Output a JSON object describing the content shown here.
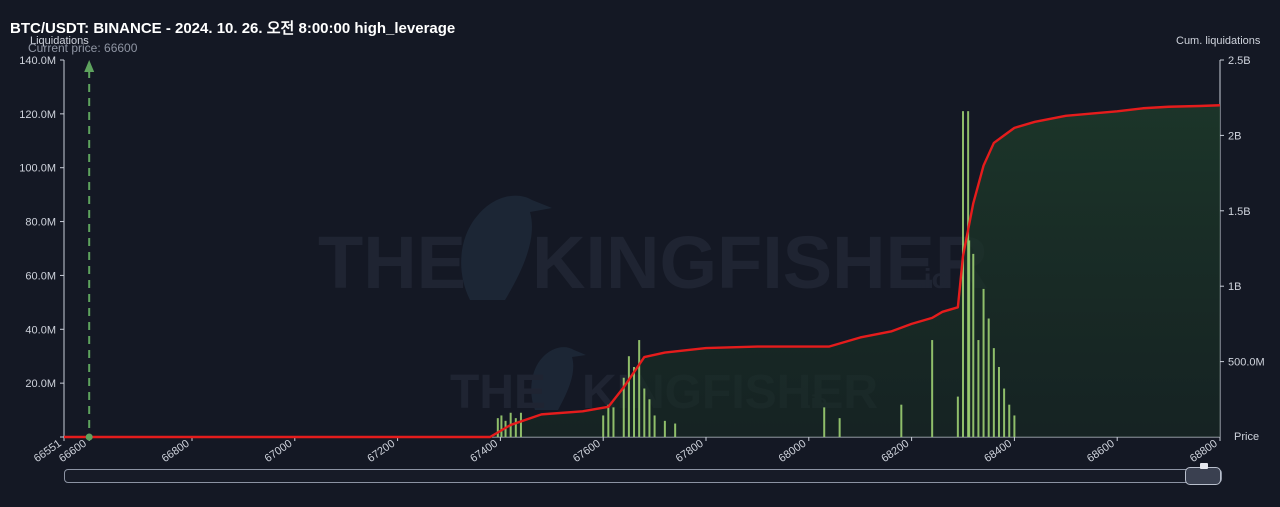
{
  "chart_data": {
    "type": "bar",
    "title": "BTC/USDT: BINANCE - 2024. 10. 26. 오전 8:00:00 high_leverage",
    "ylabel_left": "Liquidations",
    "ylabel_right": "Cum. liquidations",
    "xlabel": "Price",
    "current_price_label": "Current price: 66600",
    "current_price": 66600,
    "xlim": [
      66551,
      68800
    ],
    "ylim_left": [
      0,
      140000000
    ],
    "ylim_right": [
      0,
      2500000000
    ],
    "x_ticks": [
      66551,
      66600,
      66800,
      67000,
      67200,
      67400,
      67600,
      67800,
      68000,
      68200,
      68400,
      68600,
      68800
    ],
    "x_tick_labels": [
      "66551",
      "66600",
      "66800",
      "67000",
      "67200",
      "67400",
      "67600",
      "67800",
      "68000",
      "68200",
      "68400",
      "68600",
      "68800"
    ],
    "y_left_ticks": [
      0,
      20000000,
      40000000,
      60000000,
      80000000,
      100000000,
      120000000,
      140000000
    ],
    "y_left_tick_labels": [
      "",
      "20.0M",
      "40.0M",
      "60.0M",
      "80.0M",
      "100.0M",
      "120.0M",
      "140.0M"
    ],
    "y_right_ticks": [
      500000000,
      1000000000,
      1500000000,
      2000000000,
      2500000000
    ],
    "y_right_tick_labels": [
      "500.0M",
      "1B",
      "1.5B",
      "2B",
      "2.5B"
    ],
    "grid": false,
    "series": [
      {
        "name": "Liquidations",
        "kind": "bar",
        "color": "#9ccf72",
        "x": [
          67395,
          67402,
          67410,
          67420,
          67430,
          67440,
          67600,
          67610,
          67620,
          67640,
          67650,
          67660,
          67670,
          67680,
          67690,
          67700,
          67720,
          67740,
          68030,
          68060,
          68180,
          68240,
          68290,
          68300,
          68310,
          68312,
          68320,
          68330,
          68340,
          68350,
          68360,
          68370,
          68380,
          68390,
          68400
        ],
        "values": [
          7000000,
          8000000,
          6000000,
          9000000,
          7000000,
          9000000,
          8000000,
          12000000,
          11000000,
          22000000,
          30000000,
          26000000,
          36000000,
          18000000,
          14000000,
          8000000,
          6000000,
          5000000,
          11000000,
          7000000,
          12000000,
          36000000,
          15000000,
          121000000,
          121000000,
          73000000,
          68000000,
          36000000,
          55000000,
          44000000,
          33000000,
          26000000,
          18000000,
          12000000,
          8000000
        ]
      },
      {
        "name": "Cum. liquidations",
        "kind": "line",
        "color": "#e51c1c",
        "x": [
          66551,
          67380,
          67420,
          67480,
          67560,
          67610,
          67640,
          67680,
          67720,
          67800,
          67900,
          68040,
          68100,
          68160,
          68200,
          68240,
          68260,
          68290,
          68300,
          68320,
          68340,
          68360,
          68380,
          68400,
          68440,
          68500,
          68600,
          68650,
          68700,
          68760,
          68800
        ],
        "values": [
          0,
          0,
          80000000,
          150000000,
          170000000,
          200000000,
          330000000,
          530000000,
          560000000,
          590000000,
          600000000,
          600000000,
          660000000,
          700000000,
          750000000,
          790000000,
          830000000,
          860000000,
          1200000000,
          1550000000,
          1800000000,
          1950000000,
          2000000000,
          2050000000,
          2090000000,
          2130000000,
          2160000000,
          2180000000,
          2190000000,
          2195000000,
          2200000000
        ]
      }
    ]
  }
}
